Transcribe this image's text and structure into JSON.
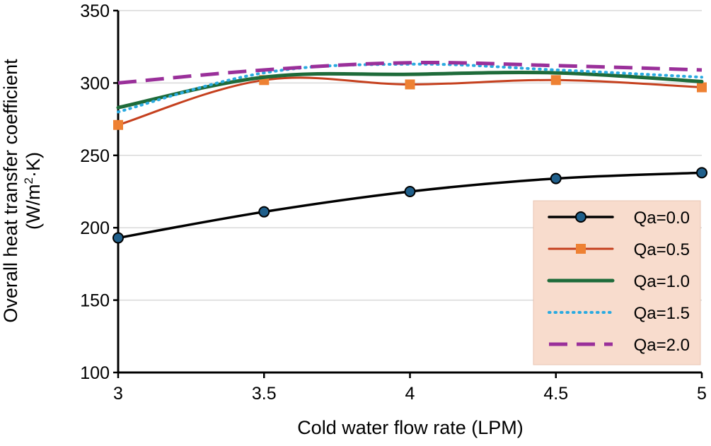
{
  "chart_data": {
    "type": "line",
    "title": "",
    "xlabel": "Cold water flow rate (LPM)",
    "ylabel_line1": "Overall heat transfer coefficient",
    "ylabel_line2_prefix": "(W/m",
    "ylabel_line2_sup": "2",
    "ylabel_line2_suffix": "·K)",
    "x": [
      3,
      3.5,
      4,
      4.5,
      5
    ],
    "xtick_labels": [
      "3",
      "3.5",
      "4",
      "4.5",
      "5"
    ],
    "xlim": [
      3,
      5
    ],
    "ylim": [
      100,
      350
    ],
    "yticks": [
      100,
      150,
      200,
      250,
      300,
      350
    ],
    "ytick_labels": [
      "100",
      "150",
      "200",
      "250",
      "300",
      "350"
    ],
    "grid": "horizontal",
    "legend_position": "bottom-right",
    "legend_bg": "#f8dccd",
    "series": [
      {
        "name": "Qa=0.0",
        "values": [
          193,
          211,
          225,
          234,
          238
        ],
        "color": "#000000",
        "marker": "circle",
        "marker_color": "#1f5f8b",
        "dash": "solid"
      },
      {
        "name": "Qa=0.5",
        "values": [
          271,
          302,
          299,
          302,
          297
        ],
        "color": "#c5401e",
        "marker": "square",
        "marker_color": "#ee8133",
        "dash": "solid"
      },
      {
        "name": "Qa=1.0",
        "values": [
          283,
          304,
          306,
          307,
          301
        ],
        "color": "#1e6b3a",
        "marker": "none",
        "dash": "solid"
      },
      {
        "name": "Qa=1.5",
        "values": [
          280,
          307,
          313,
          309,
          304
        ],
        "color": "#2aaae0",
        "marker": "none",
        "dash": "dotted"
      },
      {
        "name": "Qa=2.0",
        "values": [
          300,
          309,
          314,
          312,
          309
        ],
        "color": "#9a309a",
        "marker": "none",
        "dash": "dashed"
      }
    ]
  }
}
